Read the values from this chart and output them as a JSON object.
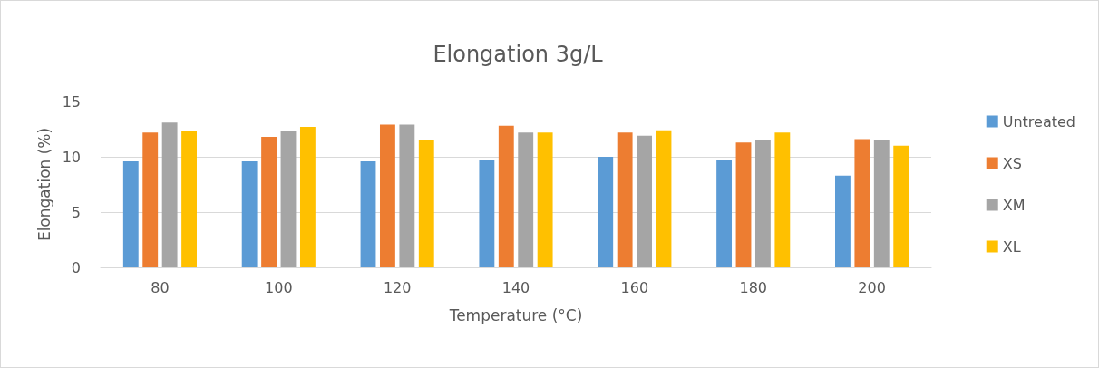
{
  "chart_data": {
    "type": "bar",
    "title": "Elongation 3g/L",
    "xlabel": "Temperature (°C)",
    "ylabel": "Elongation (%)",
    "categories": [
      "80",
      "100",
      "120",
      "140",
      "160",
      "180",
      "200"
    ],
    "series": [
      {
        "name": "Untreated",
        "color": "#5b9bd5",
        "values": [
          9.6,
          9.6,
          9.6,
          9.7,
          10.0,
          9.7,
          8.3
        ]
      },
      {
        "name": "XS",
        "color": "#ed7d31",
        "values": [
          12.2,
          11.8,
          12.9,
          12.8,
          12.2,
          11.3,
          11.6
        ]
      },
      {
        "name": "XM",
        "color": "#a5a5a5",
        "values": [
          13.1,
          12.3,
          12.9,
          12.2,
          11.9,
          11.5,
          11.5
        ]
      },
      {
        "name": "XL",
        "color": "#ffc000",
        "values": [
          12.3,
          12.7,
          11.5,
          12.2,
          12.4,
          12.2,
          11.0
        ]
      }
    ],
    "ylim": [
      0,
      15
    ],
    "yticks": [
      0,
      5,
      10,
      15
    ],
    "grid": "y",
    "legend": "right"
  }
}
